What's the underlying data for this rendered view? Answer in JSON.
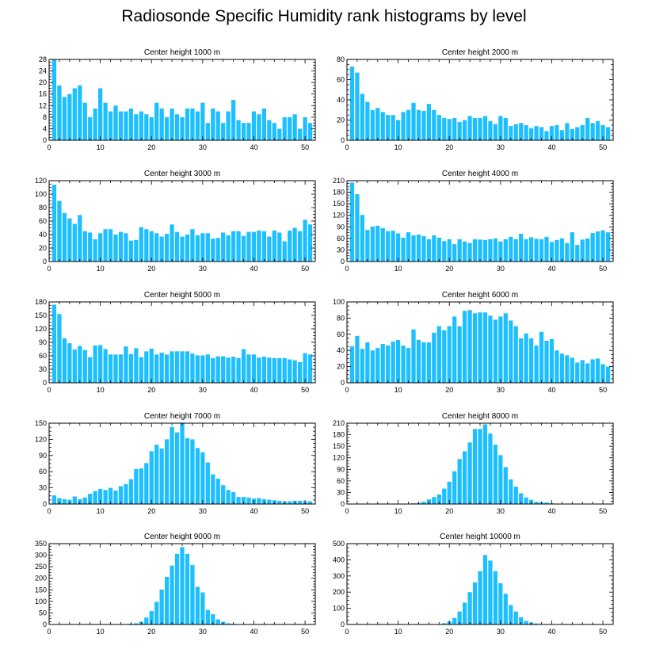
{
  "title": "Radiosonde Specific Humidity rank histograms by level",
  "bar_color": "#1ebfff",
  "chart_data": [
    {
      "type": "bar",
      "title": "Center height 1000 m",
      "xlim": [
        0,
        52
      ],
      "ylim": [
        0,
        28
      ],
      "yticks": [
        0,
        4,
        8,
        12,
        16,
        20,
        24,
        28
      ],
      "xticks": [
        0,
        10,
        20,
        30,
        40,
        50
      ],
      "values": [
        28,
        19,
        15,
        16,
        18,
        19,
        13,
        8,
        11,
        18,
        13,
        10,
        12,
        10,
        10,
        11,
        9,
        10,
        9,
        8,
        13,
        11,
        8,
        11,
        9,
        8,
        11,
        11,
        10,
        13,
        6,
        11,
        10,
        6,
        10,
        14,
        7,
        6,
        6,
        10,
        9,
        11,
        7,
        6,
        4,
        8,
        8,
        9,
        4,
        8,
        6
      ]
    },
    {
      "type": "bar",
      "title": "Center height 2000 m",
      "xlim": [
        0,
        52
      ],
      "ylim": [
        0,
        80
      ],
      "yticks": [
        0,
        20,
        40,
        60,
        80
      ],
      "xticks": [
        0,
        10,
        20,
        30,
        40,
        50
      ],
      "values": [
        73,
        67,
        46,
        38,
        30,
        32,
        28,
        25,
        25,
        20,
        28,
        30,
        37,
        30,
        29,
        36,
        30,
        25,
        22,
        21,
        22,
        18,
        20,
        24,
        22,
        22,
        24,
        19,
        16,
        24,
        22,
        14,
        16,
        17,
        15,
        12,
        14,
        13,
        9,
        14,
        15,
        10,
        17,
        11,
        13,
        15,
        22,
        17,
        19,
        15,
        13
      ]
    },
    {
      "type": "bar",
      "title": "Center height 3000 m",
      "xlim": [
        0,
        52
      ],
      "ylim": [
        0,
        120
      ],
      "yticks": [
        0,
        20,
        40,
        60,
        80,
        100,
        120
      ],
      "xticks": [
        0,
        10,
        20,
        30,
        40,
        50
      ],
      "values": [
        114,
        90,
        72,
        64,
        56,
        69,
        45,
        43,
        33,
        42,
        48,
        48,
        40,
        44,
        42,
        31,
        32,
        51,
        48,
        45,
        42,
        37,
        41,
        55,
        44,
        37,
        40,
        48,
        39,
        42,
        42,
        34,
        35,
        43,
        39,
        45,
        45,
        38,
        44,
        44,
        46,
        45,
        37,
        46,
        43,
        30,
        46,
        50,
        45,
        62,
        55
      ]
    },
    {
      "type": "bar",
      "title": "Center height 4000 m",
      "xlim": [
        0,
        52
      ],
      "ylim": [
        0,
        210
      ],
      "yticks": [
        0,
        30,
        60,
        90,
        120,
        150,
        180,
        210
      ],
      "xticks": [
        0,
        10,
        20,
        30,
        40,
        50
      ],
      "values": [
        205,
        175,
        121,
        82,
        91,
        93,
        87,
        79,
        80,
        73,
        62,
        76,
        68,
        70,
        66,
        58,
        68,
        62,
        53,
        58,
        45,
        58,
        52,
        48,
        58,
        57,
        56,
        58,
        60,
        52,
        58,
        64,
        58,
        72,
        58,
        63,
        59,
        58,
        64,
        51,
        56,
        60,
        48,
        76,
        43,
        57,
        60,
        74,
        78,
        81,
        76
      ]
    },
    {
      "type": "bar",
      "title": "Center height 5000 m",
      "xlim": [
        0,
        52
      ],
      "ylim": [
        0,
        180
      ],
      "yticks": [
        0,
        30,
        60,
        90,
        120,
        150,
        180
      ],
      "xticks": [
        0,
        10,
        20,
        30,
        40,
        50
      ],
      "values": [
        174,
        153,
        99,
        88,
        74,
        82,
        73,
        57,
        83,
        84,
        75,
        63,
        63,
        63,
        81,
        64,
        77,
        57,
        70,
        76,
        63,
        67,
        63,
        70,
        70,
        70,
        70,
        65,
        61,
        61,
        63,
        55,
        59,
        59,
        56,
        58,
        55,
        75,
        63,
        63,
        56,
        58,
        56,
        55,
        55,
        55,
        52,
        50,
        46,
        66,
        63
      ]
    },
    {
      "type": "bar",
      "title": "Center height 6000 m",
      "xlim": [
        0,
        52
      ],
      "ylim": [
        0,
        100
      ],
      "yticks": [
        0,
        20,
        40,
        60,
        80,
        100
      ],
      "xticks": [
        0,
        10,
        20,
        30,
        40,
        50
      ],
      "values": [
        45,
        58,
        42,
        50,
        40,
        43,
        48,
        46,
        51,
        53,
        46,
        43,
        66,
        53,
        50,
        50,
        62,
        70,
        65,
        70,
        82,
        70,
        89,
        90,
        86,
        87,
        87,
        83,
        78,
        82,
        86,
        77,
        70,
        55,
        61,
        55,
        46,
        63,
        52,
        54,
        40,
        36,
        34,
        31,
        25,
        28,
        24,
        29,
        30,
        23,
        20
      ]
    },
    {
      "type": "bar",
      "title": "Center height 7000 m",
      "xlim": [
        0,
        52
      ],
      "ylim": [
        0,
        150
      ],
      "yticks": [
        0,
        30,
        60,
        90,
        120,
        150
      ],
      "xticks": [
        0,
        10,
        20,
        30,
        40,
        50
      ],
      "values": [
        16,
        11,
        9,
        8,
        14,
        9,
        12,
        19,
        24,
        28,
        26,
        30,
        25,
        33,
        37,
        46,
        65,
        66,
        76,
        98,
        110,
        103,
        120,
        143,
        133,
        151,
        122,
        120,
        104,
        96,
        77,
        55,
        47,
        35,
        26,
        22,
        13,
        13,
        12,
        10,
        11,
        9,
        8,
        7,
        6,
        5,
        5,
        6,
        6,
        5,
        5
      ]
    },
    {
      "type": "bar",
      "title": "Center height 8000 m",
      "xlim": [
        0,
        52
      ],
      "ylim": [
        0,
        210
      ],
      "yticks": [
        0,
        30,
        60,
        90,
        120,
        150,
        180,
        210
      ],
      "xticks": [
        0,
        10,
        20,
        30,
        40,
        50
      ],
      "values": [
        0,
        0,
        0,
        0,
        0,
        0,
        0,
        0,
        0,
        0,
        0,
        1,
        2,
        3,
        6,
        12,
        18,
        25,
        40,
        58,
        85,
        117,
        137,
        160,
        195,
        195,
        207,
        183,
        154,
        127,
        96,
        64,
        45,
        28,
        17,
        11,
        6,
        5,
        4,
        2,
        1,
        1,
        0,
        0,
        0,
        0,
        0,
        0,
        0,
        0,
        0
      ]
    },
    {
      "type": "bar",
      "title": "Center height 9000 m",
      "xlim": [
        0,
        52
      ],
      "ylim": [
        0,
        350
      ],
      "yticks": [
        0,
        50,
        100,
        150,
        200,
        250,
        300,
        350
      ],
      "xticks": [
        0,
        10,
        20,
        30,
        40,
        50
      ],
      "values": [
        0,
        0,
        0,
        0,
        0,
        0,
        0,
        0,
        0,
        0,
        0,
        0,
        0,
        0,
        1,
        3,
        5,
        12,
        30,
        58,
        98,
        151,
        206,
        255,
        306,
        335,
        306,
        257,
        163,
        139,
        63,
        45,
        22,
        11,
        5,
        3,
        1,
        0,
        0,
        0,
        0,
        0,
        0,
        0,
        0,
        0,
        0,
        0,
        0,
        0,
        0
      ]
    },
    {
      "type": "bar",
      "title": "Center height 10000 m",
      "xlim": [
        0,
        52
      ],
      "ylim": [
        0,
        500
      ],
      "yticks": [
        0,
        100,
        200,
        300,
        400,
        500
      ],
      "xticks": [
        0,
        10,
        20,
        30,
        40,
        50
      ],
      "values": [
        0,
        0,
        0,
        0,
        0,
        0,
        0,
        0,
        0,
        0,
        0,
        0,
        0,
        0,
        0,
        0,
        0,
        2,
        8,
        18,
        40,
        80,
        135,
        200,
        260,
        330,
        430,
        395,
        330,
        255,
        190,
        120,
        80,
        45,
        22,
        12,
        6,
        2,
        1,
        0,
        0,
        0,
        0,
        0,
        0,
        0,
        0,
        0,
        0,
        0,
        0
      ]
    }
  ]
}
